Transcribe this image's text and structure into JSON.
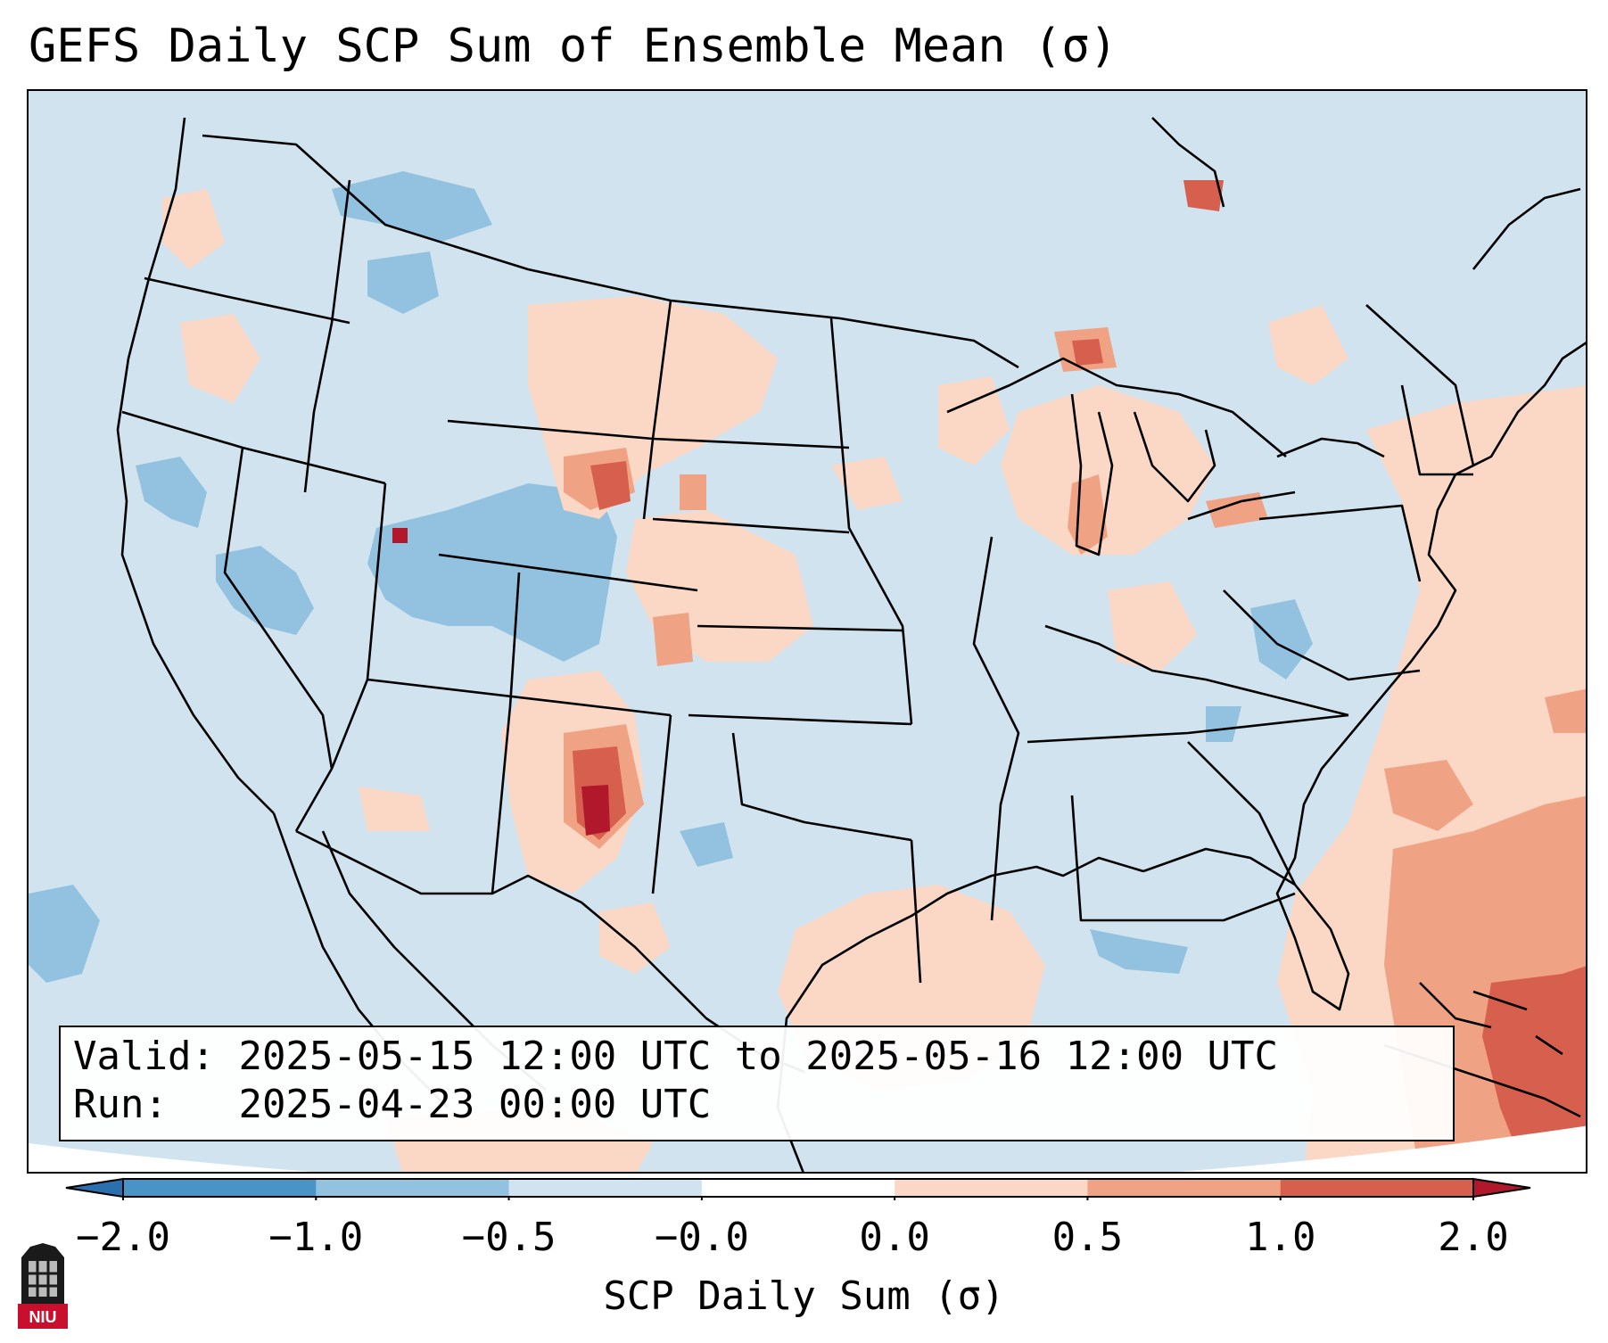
{
  "title": "GEFS Daily SCP Sum of Ensemble Mean (σ)",
  "info": {
    "valid_label": "Valid:",
    "valid_value": "2025-05-15 12:00 UTC to 2025-05-16 12:00 UTC",
    "run_label": "Run:",
    "run_value": "2025-04-23 00:00 UTC"
  },
  "colorbar": {
    "label": "SCP Daily Sum (σ)",
    "ticks": [
      "−2.0",
      "−1.0",
      "−0.5",
      "−0.0",
      "0.0",
      "0.5",
      "1.0",
      "2.0"
    ],
    "bins": [
      {
        "range": "≤ -2.0",
        "color": "#2b6fae"
      },
      {
        "range": "-2.0 to -1.0",
        "color": "#4a93c6"
      },
      {
        "range": "-1.0 to -0.5",
        "color": "#92c2df"
      },
      {
        "range": "-0.5 to -0.0",
        "color": "#d0e3ef"
      },
      {
        "range": "-0.0 to 0.0",
        "color": "#ffffff"
      },
      {
        "range": "0.0 to 0.5",
        "color": "#fbd8c6"
      },
      {
        "range": "0.5 to 1.0",
        "color": "#f0a284"
      },
      {
        "range": "1.0 to 2.0",
        "color": "#d6604d"
      },
      {
        "range": "≥ 2.0",
        "color": "#b2182b"
      }
    ]
  },
  "map": {
    "region": "Contiguous United States",
    "background_level": "-0.5 to -0.0",
    "notable_areas": [
      {
        "area": "southeast New Mexico / west Texas",
        "level": "≥ 2.0"
      },
      {
        "area": "eastern Montana / western North Dakota",
        "level": "1.0 to 2.0"
      },
      {
        "area": "Upper Peninsula of Michigan",
        "level": "1.0 to 2.0"
      },
      {
        "area": "western Atlantic near the Bahamas",
        "level": "1.0 to 2.0"
      },
      {
        "area": "western Gulf of Mexico",
        "level": "0.0 to 0.5"
      },
      {
        "area": "Utah / western Colorado",
        "level": "-1.0 to -0.5"
      }
    ]
  },
  "logo": {
    "text": "NIU"
  }
}
